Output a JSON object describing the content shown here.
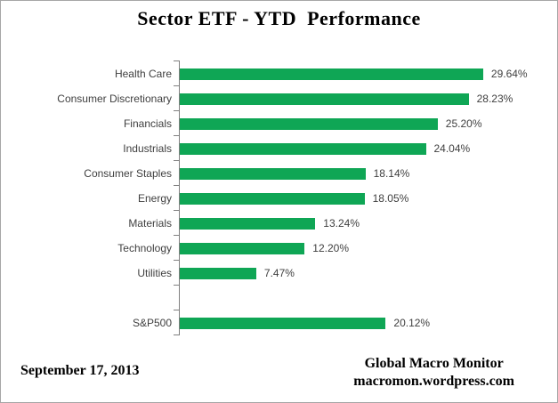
{
  "title": "Sector ETF - YTD  Performance",
  "chart_data": {
    "type": "bar",
    "orientation": "horizontal",
    "title": "Sector ETF - YTD  Performance",
    "categories": [
      "Health Care",
      "Consumer Discretionary",
      "Financials",
      "Industrials",
      "Consumer Staples",
      "Energy",
      "Materials",
      "Technology",
      "Utilities",
      "",
      "S&P500"
    ],
    "values": [
      29.64,
      28.23,
      25.2,
      24.04,
      18.14,
      18.05,
      13.24,
      12.2,
      7.47,
      null,
      20.12
    ],
    "value_labels": [
      "29.64%",
      "28.23%",
      "25.20%",
      "24.04%",
      "18.14%",
      "18.05%",
      "13.24%",
      "12.20%",
      "7.47%",
      "",
      "20.12%"
    ],
    "xlabel": "",
    "ylabel": "",
    "xlim": [
      0,
      30
    ],
    "grid": false,
    "legend": "none",
    "bar_color": "#0fa655",
    "axis_color": "#808080",
    "label_color": "#3f3f3f"
  },
  "footer": {
    "date": "September 17, 2013",
    "source_line1": "Global Macro Monitor",
    "source_line2": "macromon.wordpress.com"
  }
}
